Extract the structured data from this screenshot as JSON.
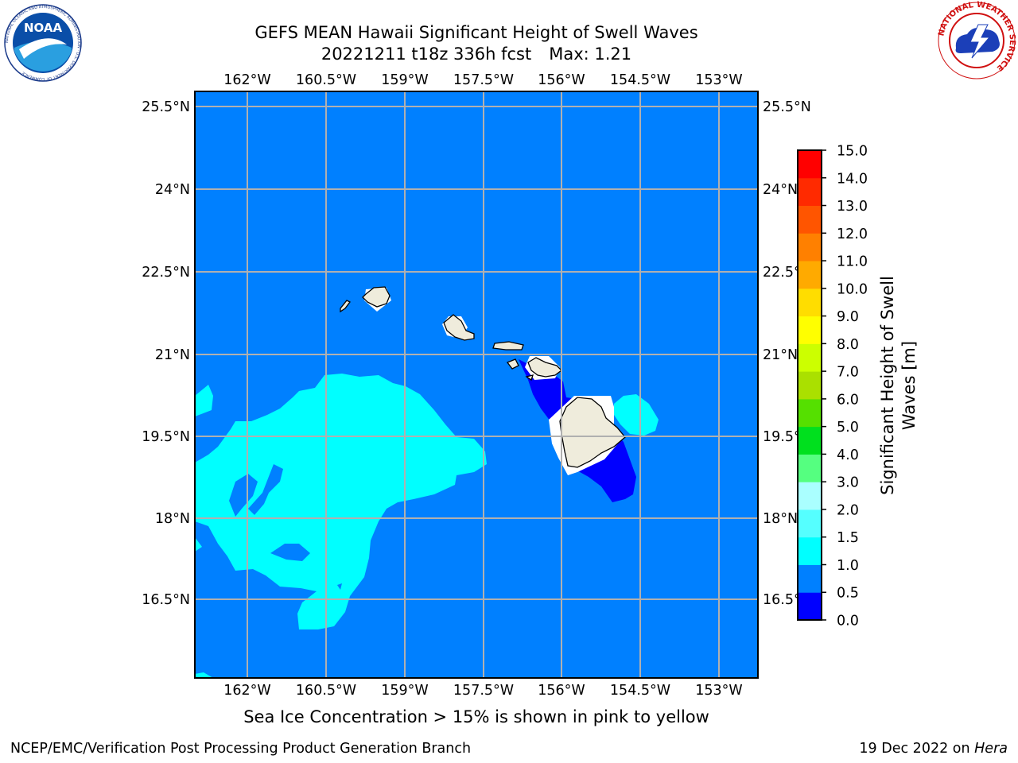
{
  "header": {
    "title": "GEFS MEAN Hawaii Significant Height of Swell Waves",
    "run": "20221211 t18z 336h fcst",
    "max_label": "Max: 1.21"
  },
  "logos": {
    "left": {
      "icon": "noaa-logo-icon",
      "text": "NOAA",
      "ring_text": "NATIONAL OCEANIC AND ATMOSPHERIC ADMINISTRATION · U.S. DEPARTMENT OF COMMERCE"
    },
    "right": {
      "icon": "nws-logo-icon",
      "ring_text": "NATIONAL WEATHER SERVICE"
    }
  },
  "map": {
    "lon_labels": [
      "162°W",
      "160.5°W",
      "159°W",
      "157.5°W",
      "156°W",
      "154.5°W",
      "153°W"
    ],
    "lat_labels": [
      "25.5°N",
      "24°N",
      "22.5°N",
      "21°N",
      "19.5°N",
      "18°N",
      "16.5°N"
    ],
    "colors": {
      "ocean_default": "#0080ff",
      "swell_0_0_5": "#0000ff",
      "swell_1_0_1_5": "#00ffff",
      "land": "#efecdc",
      "grid": "#b0b0b0"
    }
  },
  "colorbar": {
    "label_line1": "Significant Height of Swell",
    "label_line2": "Waves [m]",
    "ticks": [
      "0.0",
      "0.5",
      "1.0",
      "1.5",
      "2.0",
      "3.0",
      "4.0",
      "5.0",
      "6.0",
      "7.0",
      "8.0",
      "9.0",
      "10.0",
      "11.0",
      "12.0",
      "13.0",
      "14.0",
      "15.0"
    ],
    "colors": [
      "#0000ff",
      "#0080ff",
      "#00ffff",
      "#55ffff",
      "#aaffff",
      "#55ff80",
      "#00e01e",
      "#55e000",
      "#aae000",
      "#ccff00",
      "#ffff00",
      "#ffdd00",
      "#ffaa00",
      "#ff8000",
      "#ff5500",
      "#ff2a00",
      "#ff0000"
    ]
  },
  "footnote": "Sea Ice Concentration > 15% is shown in pink to yellow",
  "footer": {
    "left": "NCEP/EMC/Verification Post Processing Product Generation Branch",
    "date": "19 Dec 2022 on ",
    "machine": "Hera"
  }
}
